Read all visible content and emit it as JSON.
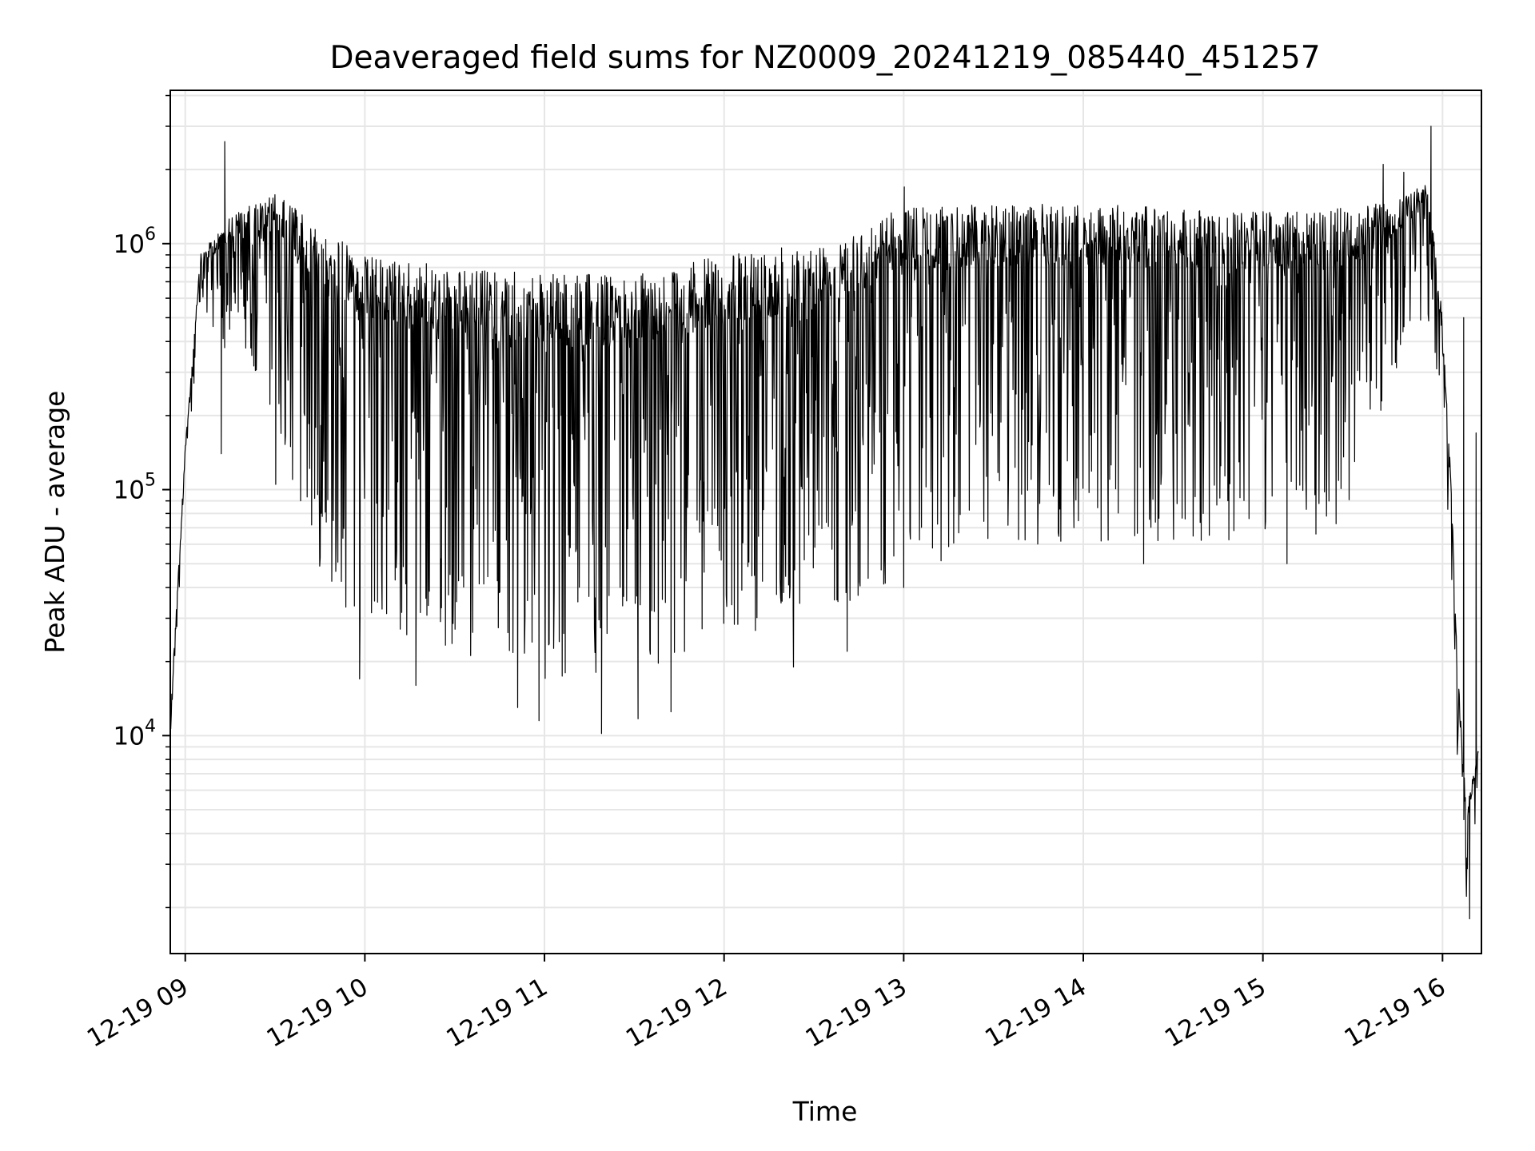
{
  "chart_data": {
    "type": "line",
    "title": "Deaveraged field sums for NZ0009_20241219_085440_451257",
    "xlabel": "Time",
    "ylabel": "Peak ADU - average",
    "yscale": "log",
    "grid": true,
    "line_color": "#000000",
    "grid_color": "#e6e6e6",
    "x_ticks": [
      "12-19 09",
      "12-19 10",
      "12-19 11",
      "12-19 12",
      "12-19 13",
      "12-19 14",
      "12-19 15",
      "12-19 16"
    ],
    "y_major_ticks": [
      {
        "value": 10000,
        "base": "10",
        "exp": "4"
      },
      {
        "value": 100000,
        "base": "10",
        "exp": "5"
      },
      {
        "value": 1000000,
        "base": "10",
        "exp": "6"
      }
    ],
    "xlim": [
      "2024-12-19 08:55",
      "2024-12-19 16:13"
    ],
    "ylim": [
      1300,
      4200000
    ],
    "series": [
      {
        "envelope": [
          {
            "t": "2024-12-19 08:55",
            "upper": 12000,
            "lower": 9000
          },
          {
            "t": "2024-12-19 09:00",
            "upper": 150000,
            "lower": 100000
          },
          {
            "t": "2024-12-19 09:05",
            "upper": 900000,
            "lower": 500000
          },
          {
            "t": "2024-12-19 09:15",
            "upper": 1300000,
            "lower": 350000
          },
          {
            "t": "2024-12-19 09:30",
            "upper": 1600000,
            "lower": 200000
          },
          {
            "t": "2024-12-19 09:40",
            "upper": 1300000,
            "lower": 60000
          },
          {
            "t": "2024-12-19 10:00",
            "upper": 900000,
            "lower": 25000
          },
          {
            "t": "2024-12-19 10:30",
            "upper": 800000,
            "lower": 22000
          },
          {
            "t": "2024-12-19 11:00",
            "upper": 750000,
            "lower": 17000
          },
          {
            "t": "2024-12-19 11:30",
            "upper": 750000,
            "lower": 16000
          },
          {
            "t": "2024-12-19 12:00",
            "upper": 900000,
            "lower": 25000
          },
          {
            "t": "2024-12-19 12:30",
            "upper": 1000000,
            "lower": 30000
          },
          {
            "t": "2024-12-19 13:00",
            "upper": 1400000,
            "lower": 45000
          },
          {
            "t": "2024-12-19 13:30",
            "upper": 1450000,
            "lower": 55000
          },
          {
            "t": "2024-12-19 14:00",
            "upper": 1450000,
            "lower": 60000
          },
          {
            "t": "2024-12-19 14:30",
            "upper": 1400000,
            "lower": 60000
          },
          {
            "t": "2024-12-19 15:00",
            "upper": 1350000,
            "lower": 60000
          },
          {
            "t": "2024-12-19 15:30",
            "upper": 1400000,
            "lower": 70000
          },
          {
            "t": "2024-12-19 15:45",
            "upper": 1500000,
            "lower": 300000
          },
          {
            "t": "2024-12-19 15:55",
            "upper": 1800000,
            "lower": 500000
          },
          {
            "t": "2024-12-19 16:00",
            "upper": 500000,
            "lower": 200000
          },
          {
            "t": "2024-12-19 16:03",
            "upper": 100000,
            "lower": 40000
          },
          {
            "t": "2024-12-19 16:05",
            "upper": 20000,
            "lower": 7000
          },
          {
            "t": "2024-12-19 16:08",
            "upper": 5000,
            "lower": 2000
          },
          {
            "t": "2024-12-19 16:12",
            "upper": 9000,
            "lower": 6000
          }
        ],
        "spikes": [
          {
            "t": "2024-12-19 09:13",
            "value": 2600000
          },
          {
            "t": "2024-12-19 09:12",
            "value": 140000
          },
          {
            "t": "2024-12-19 09:30",
            "value": 105000
          },
          {
            "t": "2024-12-19 09:58",
            "value": 17000
          },
          {
            "t": "2024-12-19 10:17",
            "value": 16000
          },
          {
            "t": "2024-12-19 10:51",
            "value": 13000
          },
          {
            "t": "2024-12-19 10:58",
            "value": 11500
          },
          {
            "t": "2024-12-19 11:19",
            "value": 10200
          },
          {
            "t": "2024-12-19 11:31",
            "value": 11700
          },
          {
            "t": "2024-12-19 11:42",
            "value": 12500
          },
          {
            "t": "2024-12-19 12:23",
            "value": 19000
          },
          {
            "t": "2024-12-19 12:41",
            "value": 22000
          },
          {
            "t": "2024-12-19 13:00",
            "value": 1700000
          },
          {
            "t": "2024-12-19 13:00",
            "value": 40000
          },
          {
            "t": "2024-12-19 14:20",
            "value": 50000
          },
          {
            "t": "2024-12-19 15:08",
            "value": 50000
          },
          {
            "t": "2024-12-19 15:40",
            "value": 2100000
          },
          {
            "t": "2024-12-19 15:47",
            "value": 1950000
          },
          {
            "t": "2024-12-19 15:56",
            "value": 3000000
          },
          {
            "t": "2024-12-19 16:07",
            "value": 500000
          },
          {
            "t": "2024-12-19 16:09",
            "value": 1800
          },
          {
            "t": "2024-12-19 16:11",
            "value": 170000
          }
        ]
      }
    ]
  }
}
